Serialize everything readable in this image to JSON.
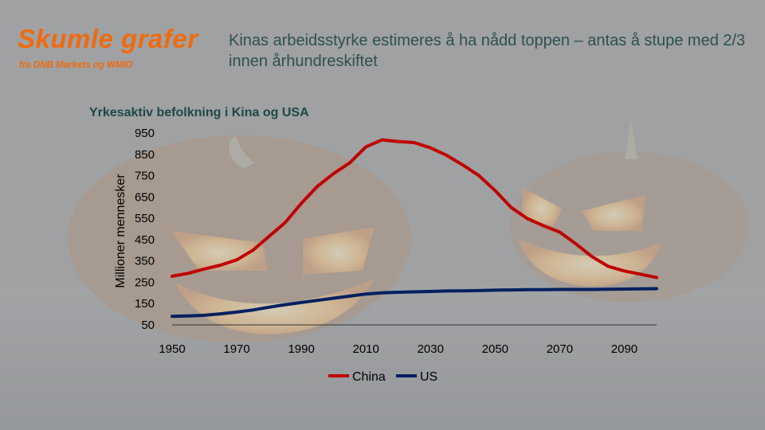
{
  "brand": {
    "title": "Skumle grafer",
    "subtitle": "fra DNB Markets og WMIO"
  },
  "headline": "Kinas arbeidsstyrke estimeres å ha nådd toppen – antas å stupe med 2/3 innen århundreskiftet",
  "chart_data": {
    "type": "line",
    "title": "Yrkesaktiv befolkning i Kina og USA",
    "ylabel": "Millioner mennesker",
    "xlabel": "",
    "xlim": [
      1950,
      2100
    ],
    "ylim": [
      50,
      950
    ],
    "xticks": [
      "1950",
      "1970",
      "1990",
      "2010",
      "2030",
      "2050",
      "2070",
      "2090"
    ],
    "yticks": [
      "950",
      "850",
      "750",
      "650",
      "550",
      "450",
      "350",
      "250",
      "150",
      "50"
    ],
    "grid": false,
    "legend": "bottom",
    "x": [
      1950,
      1955,
      1960,
      1965,
      1970,
      1975,
      1980,
      1985,
      1990,
      1995,
      2000,
      2005,
      2010,
      2015,
      2020,
      2025,
      2030,
      2035,
      2040,
      2045,
      2050,
      2055,
      2060,
      2065,
      2070,
      2075,
      2080,
      2085,
      2090,
      2095,
      2100
    ],
    "series": [
      {
        "name": "China",
        "color": "#c00000",
        "values": [
          278,
          292,
          312,
          330,
          355,
          400,
          465,
          530,
          620,
          700,
          760,
          810,
          885,
          918,
          910,
          905,
          880,
          845,
          800,
          750,
          680,
          600,
          548,
          515,
          485,
          430,
          370,
          325,
          303,
          288,
          272
        ]
      },
      {
        "name": "US",
        "color": "#002060",
        "values": [
          90,
          92,
          95,
          102,
          110,
          120,
          133,
          145,
          155,
          165,
          175,
          185,
          195,
          200,
          203,
          205,
          207,
          209,
          210,
          211,
          213,
          214,
          215,
          215,
          216,
          216,
          216,
          217,
          218,
          219,
          220
        ]
      }
    ]
  }
}
